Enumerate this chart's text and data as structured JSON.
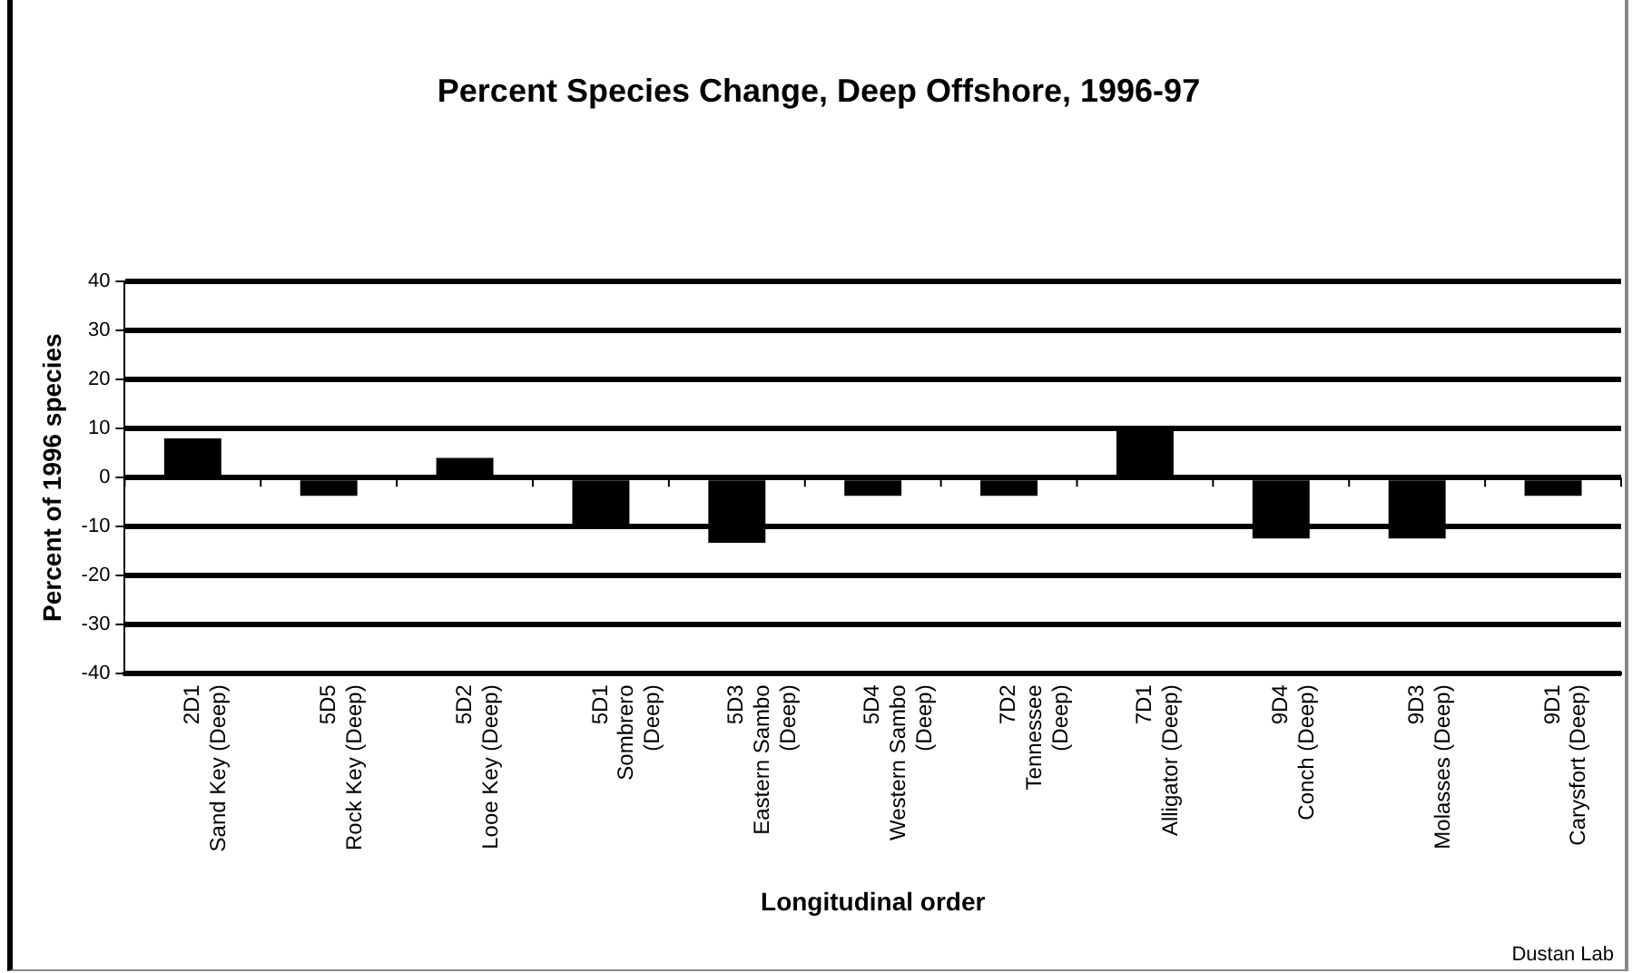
{
  "chart_data": {
    "type": "bar",
    "title": "Percent Species Change, Deep Offshore, 1996-97",
    "xlabel": "Longitudinal order",
    "ylabel": "Percent of 1996 species",
    "categories": [
      "2D1\nSand Key (Deep)",
      "5D5\nRock Key (Deep)",
      "5D2\nLooe Key (Deep)",
      "5D1\nSombrero\n(Deep)",
      "5D3\nEastern Sambo\n(Deep)",
      "5D4\nWestern Sambo\n(Deep)",
      "7D2\nTennessee\n(Deep)",
      "7D1\nAlligator (Deep)",
      "9D4\nConch (Deep)",
      "9D3\nMolasses (Deep)",
      "9D1\nCarysfort (Deep)"
    ],
    "values": [
      8,
      -3.7,
      4,
      -10,
      -13.3,
      -3.7,
      -3.7,
      10,
      -12.4,
      -12.4,
      -3.7
    ],
    "color": "#000000",
    "ylim": [
      -40,
      40
    ],
    "yticks": [
      -40,
      -30,
      -20,
      -10,
      0,
      10,
      20,
      30,
      40
    ],
    "grid": "y",
    "legend": false,
    "annotations": [
      "Dustan Lab"
    ]
  }
}
